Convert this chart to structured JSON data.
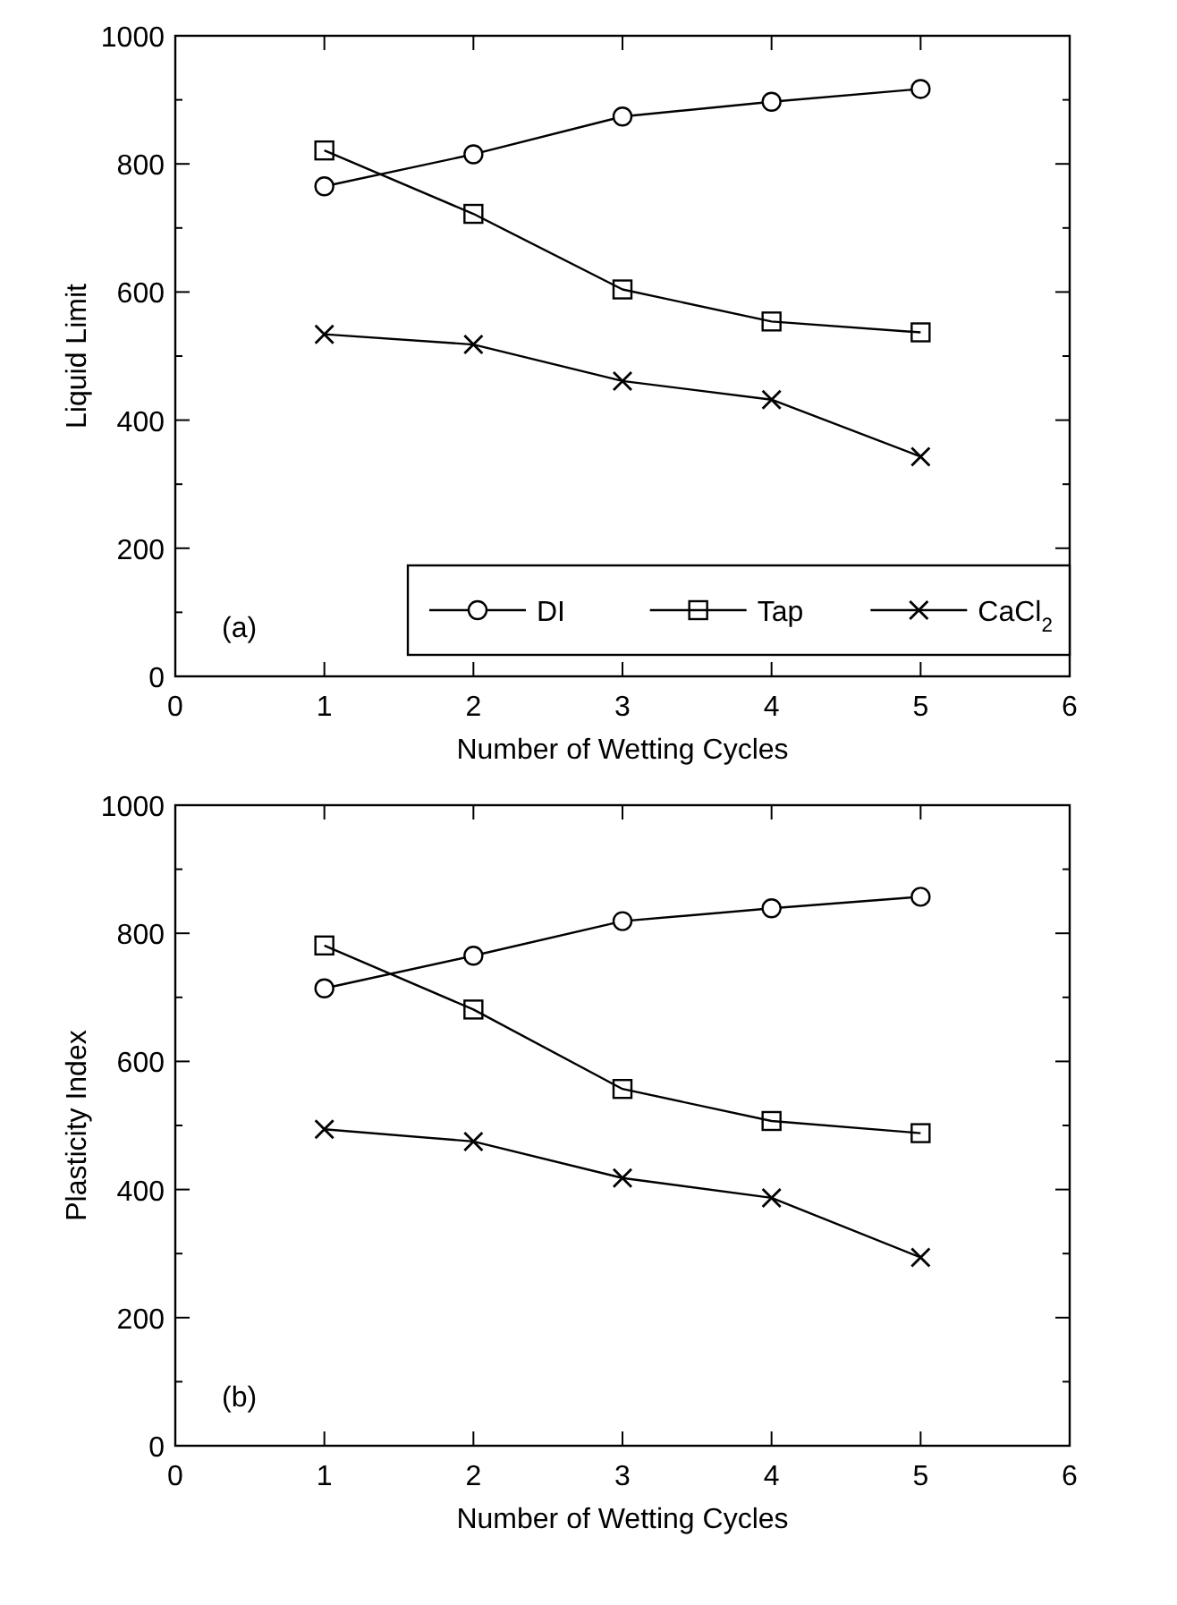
{
  "chart_data": [
    {
      "type": "line",
      "xlabel": "Number of Wetting Cycles",
      "ylabel": "Liquid Limit",
      "x": [
        1,
        2,
        3,
        4,
        5
      ],
      "xlim": [
        0,
        6
      ],
      "xticks": [
        0,
        1,
        2,
        3,
        4,
        5,
        6
      ],
      "ylim": [
        0,
        1000
      ],
      "yticks": [
        0,
        200,
        400,
        600,
        800,
        1000
      ],
      "grid": false,
      "legend": "bottom right",
      "annotations": [
        "(a)"
      ],
      "series": [
        {
          "name": "DI",
          "color": "#000000",
          "marker": "circle",
          "values": [
            765,
            815,
            874,
            897,
            917
          ]
        },
        {
          "name": "Tap",
          "color": "#000000",
          "marker": "square",
          "values": [
            821,
            722,
            604,
            554,
            537
          ]
        },
        {
          "name": "CaCl$_{2}$",
          "color": "#000000",
          "marker": "cross",
          "values": [
            534,
            518,
            461,
            432,
            343
          ]
        }
      ]
    },
    {
      "type": "line",
      "xlabel": "Number of Wetting Cycles",
      "ylabel": "Plasticity Index",
      "x": [
        1,
        2,
        3,
        4,
        5
      ],
      "xlim": [
        0,
        6
      ],
      "xticks": [
        0,
        1,
        2,
        3,
        4,
        5,
        6
      ],
      "ylim": [
        0,
        1000
      ],
      "yticks": [
        0,
        200,
        400,
        600,
        800,
        1000
      ],
      "grid": false,
      "legend": false,
      "annotations": [
        "(b)"
      ],
      "series": [
        {
          "color": "#000000",
          "marker": "circle",
          "values": [
            714,
            765,
            819,
            839,
            857
          ]
        },
        {
          "color": "#000000",
          "marker": "square",
          "values": [
            781,
            681,
            557,
            507,
            488
          ]
        },
        {
          "color": "#000000",
          "marker": "cross",
          "values": [
            494,
            475,
            418,
            387,
            294
          ]
        }
      ]
    }
  ]
}
